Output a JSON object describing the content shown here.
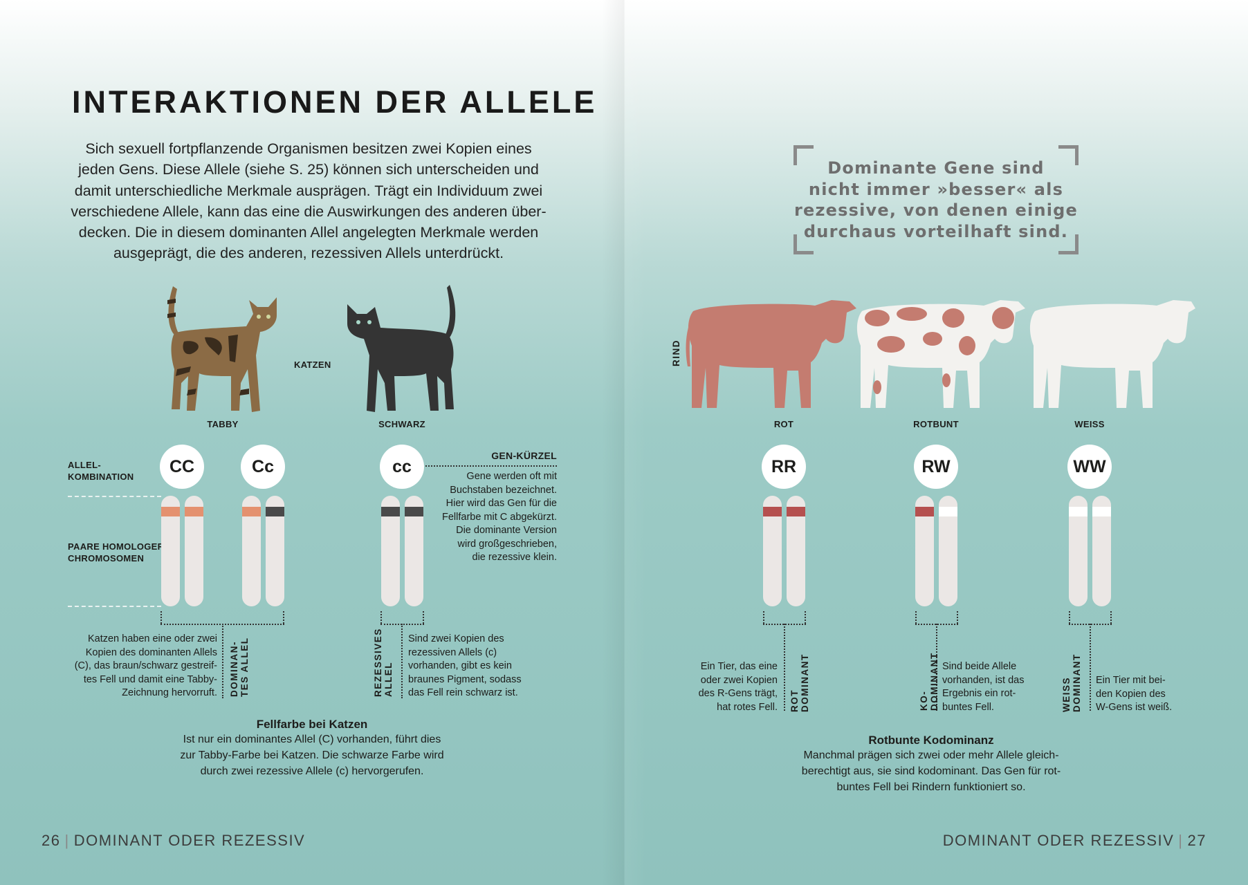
{
  "left_page": {
    "title": "INTERAKTIONEN DER ALLELE",
    "intro_lines": [
      "Sich sexuell fortpflanzende Organismen besitzen zwei Kopien eines",
      "jeden Gens. Diese Allele (siehe S. 25) können sich unterscheiden und",
      "damit unterschiedliche Merkmale ausprägen. Trägt ein Individuum zwei",
      "verschiedene Allele, kann das eine die Auswirkungen des anderen über-",
      "decken. Die in diesem dominanten Allel angelegten Merkmale werden",
      "ausgeprägt, die des anderen, rezessiven Allels unterdrückt."
    ],
    "animal_label": "KATZEN",
    "cats": [
      {
        "label": "TABBY",
        "color": "#8b6b45"
      },
      {
        "label": "SCHWARZ",
        "color": "#343434"
      }
    ],
    "row_label_allele": [
      "ALLEL-",
      "KOMBINATION"
    ],
    "row_label_chrom": [
      "PAARE HOMOLOGER",
      "CHROMOSOMEN"
    ],
    "genotypes": [
      {
        "code": "CC",
        "bands": [
          "#e4916f",
          "#e4916f"
        ]
      },
      {
        "code": "Cc",
        "bands": [
          "#e4916f",
          "#4a4a4a"
        ]
      },
      {
        "code": "cc",
        "bands": [
          "#4a4a4a",
          "#4a4a4a"
        ]
      }
    ],
    "gene_note": {
      "title": "GEN-KÜRZEL",
      "lines": [
        "Gene werden oft mit",
        "Buchstaben bezeichnet.",
        "Hier wird das Gen für die",
        "Fellfarbe mit C abgekürzt.",
        "Die dominante Version",
        "wird großgeschrieben,",
        "die rezessive klein."
      ]
    },
    "dominant_note": {
      "label": [
        "DOMINAN-",
        "TES ALLEL"
      ],
      "lines": [
        "Katzen haben eine oder zwei",
        "Kopien des dominanten Allels",
        "(C), das braun/schwarz gestreif-",
        "tes Fell und damit eine Tabby-",
        "Zeichnung hervorruft."
      ]
    },
    "recessive_note": {
      "label": [
        "REZESSIVES",
        "ALLEL"
      ],
      "lines": [
        "Sind zwei Kopien des",
        "rezessiven Allels (c)",
        "vorhanden, gibt es kein",
        "braunes Pigment, sodass",
        "das Fell rein schwarz ist."
      ]
    },
    "caption": {
      "title": "Fellfarbe bei Katzen",
      "lines": [
        "Ist nur ein dominantes Allel (C) vorhanden, führt dies",
        "zur Tabby-Farbe bei Katzen. Die schwarze Farbe wird",
        "durch zwei rezessive Allele (c) hervorgerufen."
      ]
    },
    "footer": {
      "page": "26",
      "section": "DOMINANT ODER REZESSIV"
    }
  },
  "right_page": {
    "quote_lines": [
      "Dominante Gene sind",
      "nicht immer »besser« als",
      "rezessive, von denen einige",
      "durchaus vorteilhaft sind."
    ],
    "animal_label": "RIND",
    "cows": [
      {
        "label": "ROT",
        "color": "#c47c70"
      },
      {
        "label": "ROTBUNT",
        "color": "#c47c70"
      },
      {
        "label": "WEISS",
        "color": "#f3f2ef"
      }
    ],
    "genotypes": [
      {
        "code": "RR",
        "bands": [
          "#b5504f",
          "#b5504f"
        ]
      },
      {
        "code": "RW",
        "bands": [
          "#b5504f",
          "#ffffff"
        ]
      },
      {
        "code": "WW",
        "bands": [
          "#ffffff",
          "#ffffff"
        ]
      }
    ],
    "red_note": {
      "label": [
        "ROT",
        "DOMINANT"
      ],
      "lines": [
        "Ein Tier, das eine",
        "oder zwei Kopien",
        "des R-Gens trägt,",
        "hat rotes Fell."
      ]
    },
    "codominant_note": {
      "label": [
        "KO-DOMINANT"
      ],
      "lines": [
        "Sind beide Allele",
        "vorhanden, ist das",
        "Ergebnis ein rot-",
        "buntes Fell."
      ]
    },
    "white_note": {
      "label": [
        "WEISS",
        "DOMINANT"
      ],
      "lines": [
        "Ein Tier mit bei-",
        "den Kopien des",
        "W-Gens ist weiß."
      ]
    },
    "caption": {
      "title": "Rotbunte Kodominanz",
      "lines": [
        "Manchmal prägen sich zwei oder mehr Allele gleich-",
        "berechtigt aus, sie sind kodominant. Das Gen für rot-",
        "buntes Fell bei Rindern funktioniert so."
      ]
    },
    "footer": {
      "page": "27",
      "section": "DOMINANT ODER REZESSIV"
    }
  }
}
